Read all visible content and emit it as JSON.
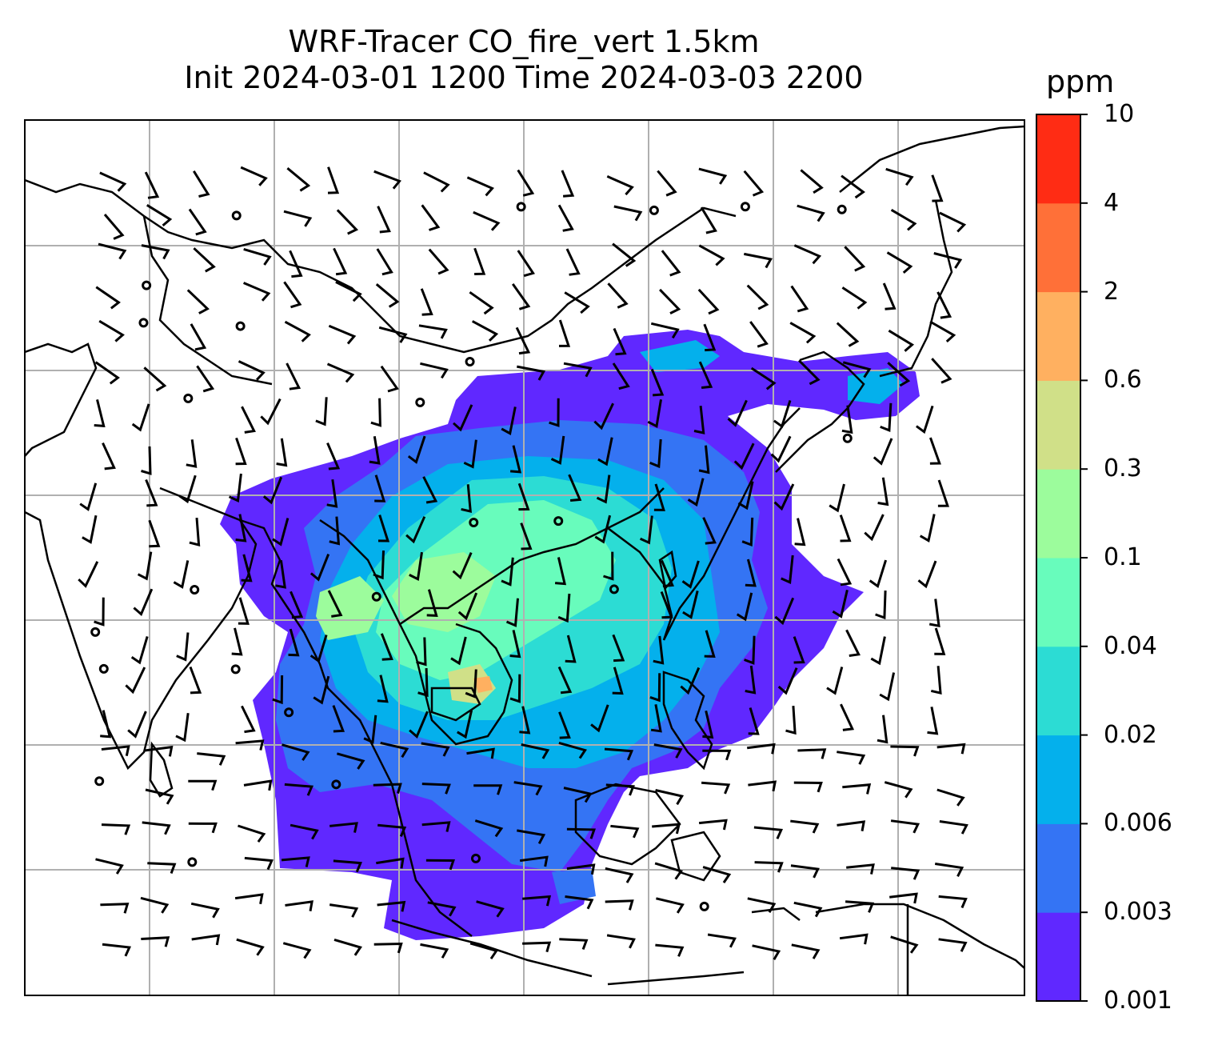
{
  "title_line1": "WRF-Tracer CO_fire_vert 1.5km",
  "title_line2": "Init 2024-03-01 1200 Time 2024-03-03 2200",
  "colorbar": {
    "unit": "ppm",
    "levels": [
      "0.001",
      "0.003",
      "0.006",
      "0.02",
      "0.04",
      "0.1",
      "0.3",
      "0.6",
      "2",
      "4",
      "10"
    ],
    "colors": [
      "#6028ff",
      "#3474f4",
      "#04b0ec",
      "#2cdcd4",
      "#68fcbc",
      "#9cfc9c",
      "#d0e088",
      "#ffb060",
      "#ff7038",
      "#ff2c14"
    ]
  },
  "map": {
    "gridlines": true,
    "coastline_color": "#000000",
    "grid_color": "#b0b0b0"
  }
}
